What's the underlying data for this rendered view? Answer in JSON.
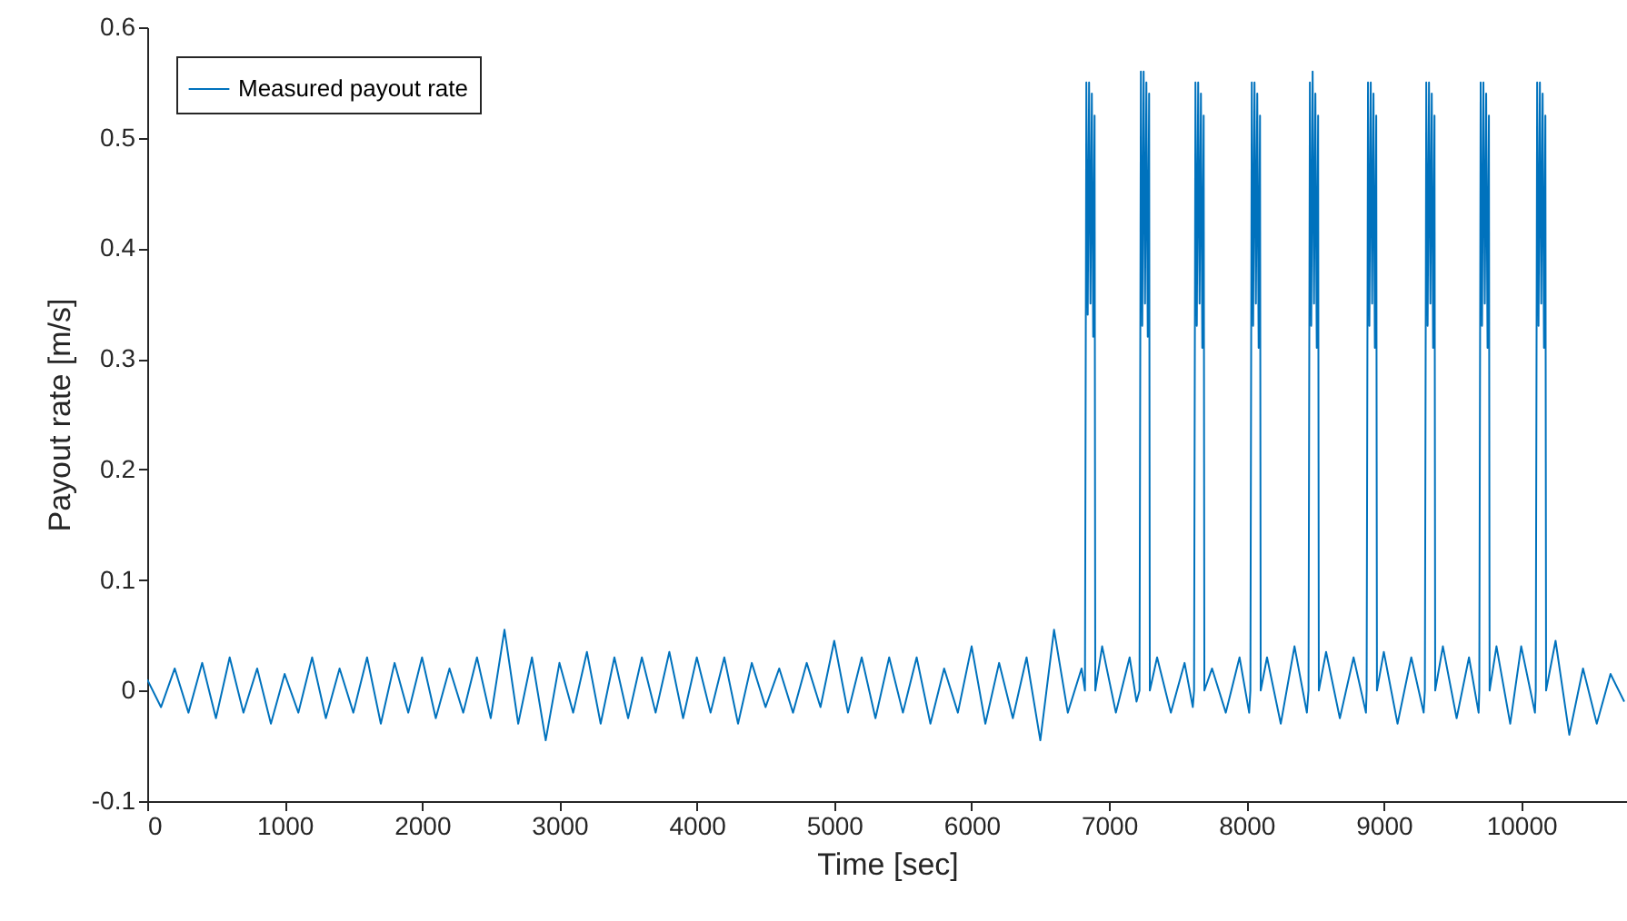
{
  "chart_data": {
    "type": "line",
    "xlabel": "Time [sec]",
    "ylabel": "Payout rate [m/s]",
    "xlim": [
      0,
      10770
    ],
    "xticks": [
      0,
      1000,
      2000,
      3000,
      4000,
      5000,
      6000,
      7000,
      8000,
      9000,
      10000
    ],
    "ylim": [
      -0.1,
      0.6
    ],
    "yticks": [
      -0.1,
      0,
      0.1,
      0.2,
      0.3,
      0.4,
      0.5,
      0.6
    ],
    "grid": false,
    "legend": "top left",
    "line_style": "solid",
    "x": [
      0,
      100,
      200,
      300,
      400,
      500,
      600,
      700,
      800,
      900,
      1000,
      1100,
      1200,
      1300,
      1400,
      1500,
      1600,
      1700,
      1800,
      1900,
      2000,
      2100,
      2200,
      2300,
      2400,
      2500,
      2600,
      2700,
      2800,
      2900,
      3000,
      3100,
      3200,
      3300,
      3400,
      3500,
      3600,
      3700,
      3800,
      3900,
      4000,
      4100,
      4200,
      4300,
      4400,
      4500,
      4600,
      4700,
      4800,
      4900,
      5000,
      5100,
      5200,
      5300,
      5400,
      5500,
      5600,
      5700,
      5800,
      5900,
      6000,
      6100,
      6200,
      6300,
      6400,
      6500,
      6600,
      6700,
      6800,
      6825,
      6835,
      6845,
      6855,
      6865,
      6875,
      6885,
      6895,
      6900,
      6950,
      7050,
      7150,
      7200,
      7222,
      7232,
      7242,
      7252,
      7262,
      7272,
      7282,
      7292,
      7297,
      7350,
      7450,
      7550,
      7610,
      7619,
      7629,
      7639,
      7649,
      7659,
      7669,
      7679,
      7689,
      7694,
      7750,
      7850,
      7950,
      8020,
      8029,
      8039,
      8049,
      8059,
      8069,
      8079,
      8089,
      8099,
      8104,
      8150,
      8250,
      8350,
      8440,
      8452,
      8462,
      8472,
      8482,
      8492,
      8502,
      8512,
      8522,
      8527,
      8580,
      8680,
      8780,
      8870,
      8875,
      8885,
      8895,
      8905,
      8915,
      8925,
      8935,
      8945,
      8950,
      9000,
      9100,
      9200,
      9290,
      9299,
      9309,
      9319,
      9329,
      9339,
      9349,
      9359,
      9369,
      9374,
      9430,
      9530,
      9620,
      9690,
      9695,
      9705,
      9715,
      9725,
      9735,
      9745,
      9755,
      9765,
      9770,
      9820,
      9920,
      10000,
      10100,
      10106,
      10116,
      10126,
      10136,
      10146,
      10156,
      10166,
      10176,
      10181,
      10250,
      10350,
      10450,
      10550,
      10650,
      10750
    ],
    "series": [
      {
        "name": "Measured payout rate",
        "color": "#0072bd",
        "values": [
          0.01,
          -0.015,
          0.02,
          -0.02,
          0.025,
          -0.025,
          0.03,
          -0.02,
          0.02,
          -0.03,
          0.015,
          -0.02,
          0.03,
          -0.025,
          0.02,
          -0.02,
          0.03,
          -0.03,
          0.025,
          -0.02,
          0.03,
          -0.025,
          0.02,
          -0.02,
          0.03,
          -0.025,
          0.055,
          -0.03,
          0.03,
          -0.045,
          0.025,
          -0.02,
          0.035,
          -0.03,
          0.03,
          -0.025,
          0.03,
          -0.02,
          0.035,
          -0.025,
          0.03,
          -0.02,
          0.03,
          -0.03,
          0.025,
          -0.015,
          0.02,
          -0.02,
          0.025,
          -0.015,
          0.045,
          -0.02,
          0.03,
          -0.025,
          0.03,
          -0.02,
          0.03,
          -0.03,
          0.02,
          -0.02,
          0.04,
          -0.03,
          0.025,
          -0.025,
          0.03,
          -0.045,
          0.055,
          -0.02,
          0.02,
          0,
          0.55,
          0.34,
          0.55,
          0.35,
          0.54,
          0.32,
          0.52,
          0,
          0.04,
          -0.02,
          0.03,
          -0.01,
          0,
          0.56,
          0.33,
          0.56,
          0.35,
          0.55,
          0.32,
          0.54,
          0,
          0.03,
          -0.02,
          0.025,
          -0.015,
          0,
          0.55,
          0.33,
          0.55,
          0.35,
          0.54,
          0.31,
          0.52,
          0,
          0.02,
          -0.02,
          0.03,
          -0.02,
          0,
          0.55,
          0.33,
          0.55,
          0.35,
          0.54,
          0.31,
          0.52,
          0,
          0.03,
          -0.03,
          0.04,
          -0.02,
          0,
          0.55,
          0.33,
          0.56,
          0.35,
          0.54,
          0.31,
          0.52,
          0,
          0.035,
          -0.025,
          0.03,
          -0.02,
          0,
          0.55,
          0.33,
          0.55,
          0.35,
          0.54,
          0.31,
          0.52,
          0,
          0.035,
          -0.03,
          0.03,
          -0.02,
          0,
          0.55,
          0.33,
          0.55,
          0.35,
          0.54,
          0.31,
          0.52,
          0,
          0.04,
          -0.025,
          0.03,
          -0.02,
          0,
          0.55,
          0.33,
          0.55,
          0.35,
          0.54,
          0.31,
          0.52,
          0,
          0.04,
          -0.03,
          0.04,
          -0.02,
          0,
          0.55,
          0.33,
          0.55,
          0.35,
          0.54,
          0.31,
          0.52,
          0,
          0.045,
          -0.04,
          0.02,
          -0.03,
          0.015,
          -0.01
        ]
      }
    ]
  }
}
